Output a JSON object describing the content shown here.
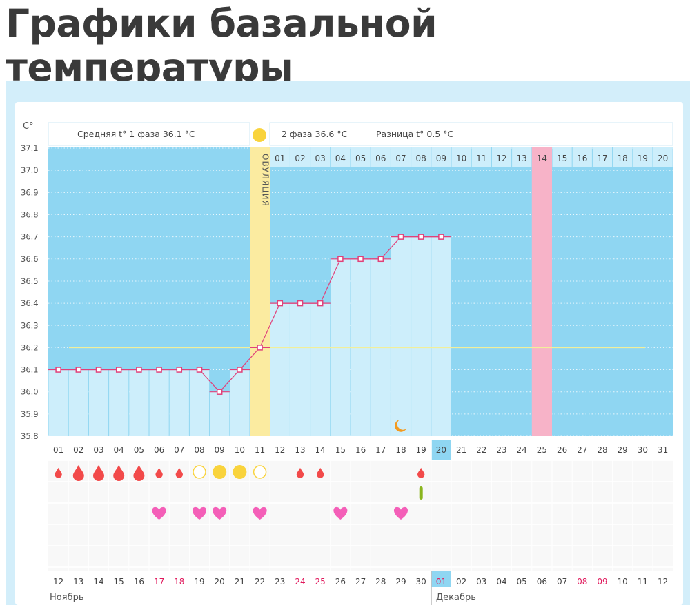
{
  "page_title": "Графики базальной температуры",
  "chart_data": {
    "type": "line",
    "ylabel": "C°",
    "ylim": [
      35.8,
      37.1
    ],
    "y_ticks": [
      "37.1",
      "37.0",
      "36.9",
      "36.8",
      "36.7",
      "36.6",
      "36.5",
      "36.4",
      "36.3",
      "36.2",
      "36.1",
      "36.0",
      "35.9",
      "35.8"
    ],
    "grid": true,
    "cycle_days": [
      "01",
      "02",
      "03",
      "04",
      "05",
      "06",
      "07",
      "08",
      "09",
      "10",
      "11",
      "12",
      "13",
      "14",
      "15",
      "16",
      "17",
      "18",
      "19",
      "20",
      "21",
      "22",
      "23",
      "24",
      "25",
      "26",
      "27",
      "28",
      "29",
      "30",
      "31"
    ],
    "temperatures": [
      36.1,
      36.1,
      36.1,
      36.1,
      36.1,
      36.1,
      36.1,
      36.1,
      36.0,
      36.1,
      36.2,
      36.4,
      36.4,
      36.4,
      36.6,
      36.6,
      36.6,
      36.7,
      36.7,
      36.7
    ],
    "coverline": 36.2,
    "ovulation_day": 11,
    "ovulation_label": "ОВУЛЯЦИЯ",
    "current_day": 20,
    "expected_period_day": 25,
    "moon_day": 18,
    "phase1_label": "Средняя t° 1 фаза 36.1 °C",
    "phase2_label": "2 фаза 36.6 °C",
    "difference_label": "Разница t° 0.5 °C",
    "post_ovulation_days": [
      "01",
      "02",
      "03",
      "04",
      "05",
      "06",
      "07",
      "08",
      "09",
      "10",
      "11",
      "12",
      "13",
      "14",
      "15",
      "16",
      "17",
      "18",
      "19",
      "20"
    ],
    "bleeding": {
      "small": [
        1,
        6,
        7,
        13,
        14,
        19
      ],
      "large": [
        2,
        3,
        4,
        5
      ]
    },
    "mucus": {
      "open": [
        8,
        11
      ],
      "filled": [
        9,
        10
      ]
    },
    "test_day": [
      19
    ],
    "intercourse": [
      6,
      8,
      9,
      11,
      15,
      18
    ],
    "dates": [
      "12",
      "13",
      "14",
      "15",
      "16",
      "17",
      "18",
      "19",
      "20",
      "21",
      "22",
      "23",
      "24",
      "25",
      "26",
      "27",
      "28",
      "29",
      "30",
      "01",
      "02",
      "03",
      "04",
      "05",
      "06",
      "07",
      "08",
      "09",
      "10",
      "11",
      "12"
    ],
    "weekend_date_indices": [
      5,
      6,
      12,
      13,
      19,
      26,
      27
    ],
    "today_date_index": 20,
    "month1": "Ноябрь",
    "month2": "Декабрь",
    "colors": {
      "chart_bg": "#8fd6f2",
      "bar": "#cdeefb",
      "line": "#e0417a",
      "coverline": "#f2ef9a",
      "ovulation": "#fbeba0",
      "period": "#f7b3c8",
      "drop": "#f24a4a",
      "sun": "#f9d33c",
      "heart": "#f45fb8",
      "test": "#8ab51e",
      "weekend": "#e0195c"
    }
  }
}
